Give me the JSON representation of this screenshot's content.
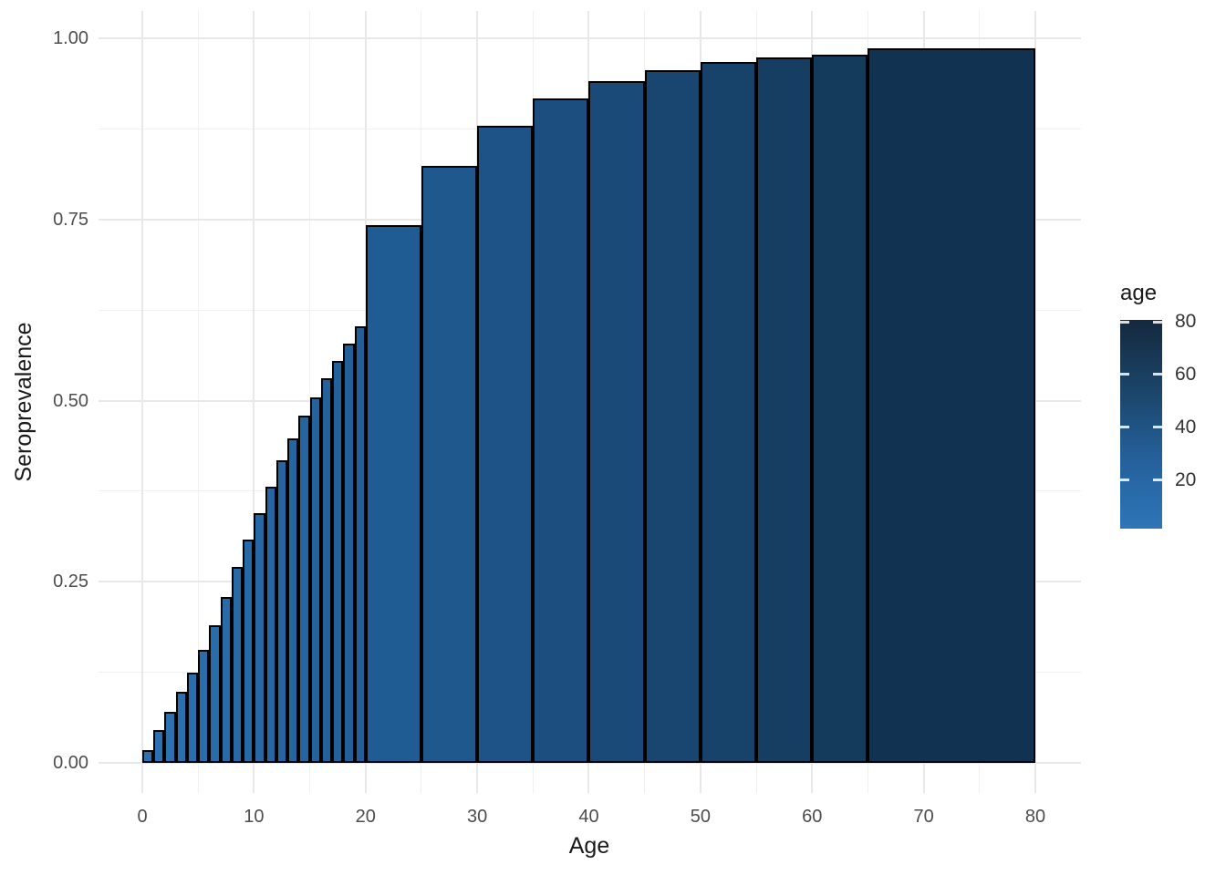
{
  "chart_data": {
    "type": "bar",
    "title": "",
    "xlabel": "Age",
    "ylabel": "Seroprevalence",
    "x_ticks": [
      0,
      10,
      20,
      30,
      40,
      50,
      60,
      70,
      80
    ],
    "x_minor_ticks": [
      5,
      15,
      25,
      35,
      45,
      55,
      65,
      75
    ],
    "y_ticks": [
      {
        "value": 0.0,
        "label": "0.00"
      },
      {
        "value": 0.25,
        "label": "0.25"
      },
      {
        "value": 0.5,
        "label": "0.50"
      },
      {
        "value": 0.75,
        "label": "0.75"
      },
      {
        "value": 1.0,
        "label": "1.00"
      }
    ],
    "y_minor_ticks": [
      0.125,
      0.375,
      0.625,
      0.875
    ],
    "xlim": [
      -4,
      84
    ],
    "ylim": [
      0,
      1.04
    ],
    "grid": "on",
    "bars": [
      {
        "age_start": 0,
        "age_end": 1,
        "seroprevalence": 0.018,
        "fill": "#2C72B2"
      },
      {
        "age_start": 1,
        "age_end": 2,
        "seroprevalence": 0.045,
        "fill": "#2B71B1"
      },
      {
        "age_start": 2,
        "age_end": 3,
        "seroprevalence": 0.071,
        "fill": "#2B70AF"
      },
      {
        "age_start": 3,
        "age_end": 4,
        "seroprevalence": 0.098,
        "fill": "#2A6FAE"
      },
      {
        "age_start": 4,
        "age_end": 5,
        "seroprevalence": 0.125,
        "fill": "#2A6EAD"
      },
      {
        "age_start": 5,
        "age_end": 6,
        "seroprevalence": 0.156,
        "fill": "#296DAB"
      },
      {
        "age_start": 6,
        "age_end": 7,
        "seroprevalence": 0.19,
        "fill": "#296CAA"
      },
      {
        "age_start": 7,
        "age_end": 8,
        "seroprevalence": 0.229,
        "fill": "#286BA8"
      },
      {
        "age_start": 8,
        "age_end": 9,
        "seroprevalence": 0.27,
        "fill": "#286AA7"
      },
      {
        "age_start": 9,
        "age_end": 10,
        "seroprevalence": 0.308,
        "fill": "#2769A6"
      },
      {
        "age_start": 10,
        "age_end": 11,
        "seroprevalence": 0.345,
        "fill": "#2768A4"
      },
      {
        "age_start": 11,
        "age_end": 12,
        "seroprevalence": 0.381,
        "fill": "#2667A3"
      },
      {
        "age_start": 12,
        "age_end": 13,
        "seroprevalence": 0.417,
        "fill": "#2566A2"
      },
      {
        "age_start": 13,
        "age_end": 14,
        "seroprevalence": 0.448,
        "fill": "#2565A0"
      },
      {
        "age_start": 14,
        "age_end": 15,
        "seroprevalence": 0.479,
        "fill": "#24649F"
      },
      {
        "age_start": 15,
        "age_end": 16,
        "seroprevalence": 0.505,
        "fill": "#24639E"
      },
      {
        "age_start": 16,
        "age_end": 17,
        "seroprevalence": 0.531,
        "fill": "#23629C"
      },
      {
        "age_start": 17,
        "age_end": 18,
        "seroprevalence": 0.555,
        "fill": "#23619B"
      },
      {
        "age_start": 18,
        "age_end": 19,
        "seroprevalence": 0.579,
        "fill": "#226099"
      },
      {
        "age_start": 19,
        "age_end": 20,
        "seroprevalence": 0.602,
        "fill": "#225F98"
      },
      {
        "age_start": 20,
        "age_end": 25,
        "seroprevalence": 0.742,
        "fill": "#205C94"
      },
      {
        "age_start": 25,
        "age_end": 30,
        "seroprevalence": 0.824,
        "fill": "#1F588D"
      },
      {
        "age_start": 30,
        "age_end": 35,
        "seroprevalence": 0.879,
        "fill": "#1D5386"
      },
      {
        "age_start": 35,
        "age_end": 40,
        "seroprevalence": 0.917,
        "fill": "#1C4F7F"
      },
      {
        "age_start": 40,
        "age_end": 45,
        "seroprevalence": 0.941,
        "fill": "#1A4A77"
      },
      {
        "age_start": 45,
        "age_end": 50,
        "seroprevalence": 0.956,
        "fill": "#194670"
      },
      {
        "age_start": 50,
        "age_end": 55,
        "seroprevalence": 0.967,
        "fill": "#17426A"
      },
      {
        "age_start": 55,
        "age_end": 60,
        "seroprevalence": 0.973,
        "fill": "#163E63"
      },
      {
        "age_start": 60,
        "age_end": 65,
        "seroprevalence": 0.977,
        "fill": "#143A5C"
      },
      {
        "age_start": 65,
        "age_end": 80,
        "seroprevalence": 0.986,
        "fill": "#113250"
      }
    ],
    "legend": {
      "title": "age",
      "position": "right",
      "tick_values": [
        80,
        60,
        40,
        20
      ],
      "tick_labels": [
        "80",
        "60",
        "40",
        "20"
      ],
      "gradient_stops_top_to_bottom": [
        {
          "pos": 0,
          "color": "#14293E"
        },
        {
          "pos": 33,
          "color": "#1B4468"
        },
        {
          "pos": 66,
          "color": "#24609A"
        },
        {
          "pos": 100,
          "color": "#2E75B7"
        }
      ]
    },
    "colors": {
      "background": "#FFFFFF",
      "bar_border": "#000000",
      "grid_major": "#E8E8E8",
      "grid_minor": "#F0F0F0",
      "tick_label": "#4D4D4D",
      "axis_title": "#1A1A1A"
    }
  }
}
